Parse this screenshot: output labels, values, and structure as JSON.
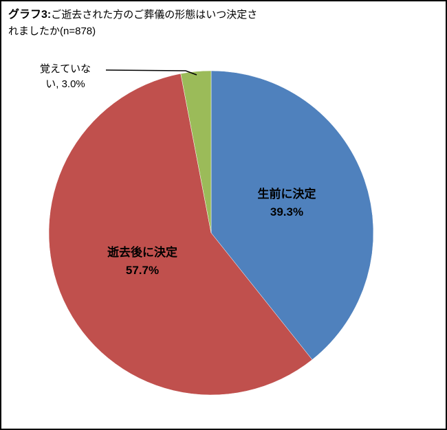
{
  "header": {
    "title_bold": "グラフ3:",
    "title_rest": "ご逝去された方のご葬儀の形態はいつ決定さ",
    "title_line2": "れましたか(n=878)"
  },
  "chart_data": {
    "type": "pie",
    "title": "グラフ3: ご逝去された方のご葬儀の形態はいつ決定されましたか (n=878)",
    "sample_size": 878,
    "categories": [
      "生前に決定",
      "逝去後に決定",
      "覚えていない"
    ],
    "values": [
      39.3,
      57.7,
      3.0
    ],
    "colors": [
      "#4F81BD",
      "#C0504D",
      "#9BBB59"
    ],
    "start_angle_deg": 0,
    "direction": "clockwise",
    "legend": "none",
    "data_label_format": "name, percent"
  },
  "labels": {
    "inside": [
      {
        "name": "生前に決定",
        "value": "39.3%"
      },
      {
        "name": "逝去後に決定",
        "value": "57.7%"
      }
    ],
    "outside_line1": "覚えていな",
    "outside_line2": "い, 3.0%"
  }
}
